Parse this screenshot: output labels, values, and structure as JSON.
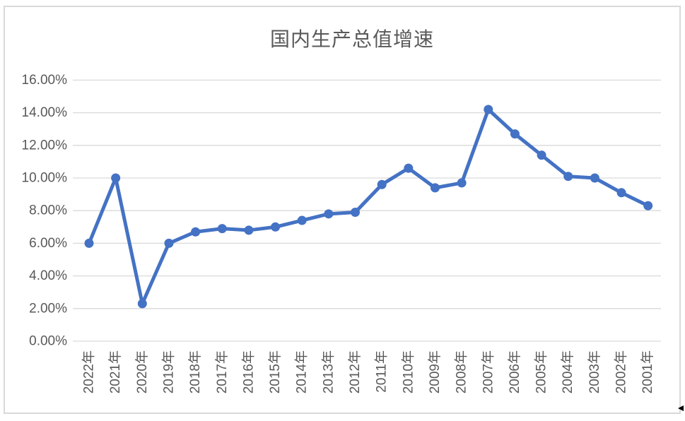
{
  "chart_data": {
    "type": "line",
    "title": "国内生产总值增速",
    "categories": [
      "2022年",
      "2021年",
      "2020年",
      "2019年",
      "2018年",
      "2017年",
      "2016年",
      "2015年",
      "2014年",
      "2013年",
      "2012年",
      "2011年",
      "2010年",
      "2009年",
      "2008年",
      "2007年",
      "2006年",
      "2005年",
      "2004年",
      "2003年",
      "2002年",
      "2001年"
    ],
    "values": [
      6.0,
      10.0,
      2.3,
      6.0,
      6.7,
      6.9,
      6.8,
      7.0,
      7.4,
      7.8,
      7.9,
      9.6,
      10.6,
      9.4,
      9.7,
      14.2,
      12.7,
      11.4,
      10.1,
      10.0,
      9.1,
      8.3
    ],
    "unit": "%",
    "xlabel": "",
    "ylabel": "",
    "ylim": [
      0,
      16
    ],
    "ytick_step": 2,
    "ytick_labels": [
      "0.00%",
      "2.00%",
      "4.00%",
      "6.00%",
      "8.00%",
      "10.00%",
      "12.00%",
      "14.00%",
      "16.00%"
    ],
    "grid": true,
    "legend_position": "none",
    "marker": "circle",
    "colors": {
      "line": "#4472C4",
      "gridline": "#d9d9d9",
      "axis_label": "#595959",
      "title": "#595959",
      "frame_border": "#d9d9d9",
      "background": "#ffffff",
      "corner_mark": "#000000"
    }
  }
}
